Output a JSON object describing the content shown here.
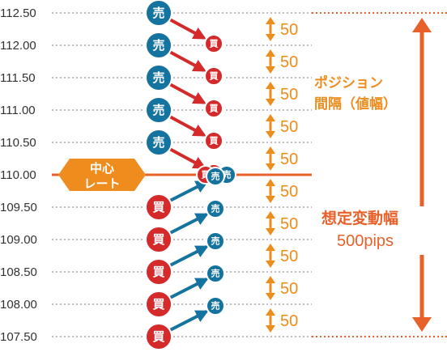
{
  "price_levels": [
    "112.50",
    "112.00",
    "111.50",
    "111.00",
    "110.50",
    "110.00",
    "109.50",
    "109.00",
    "108.50",
    "108.00",
    "107.50"
  ],
  "sell_label": "売",
  "buy_label": "買",
  "spacing_label": "50",
  "center_rate": {
    "line1": "中心",
    "line2": "レート"
  },
  "position_spacing": {
    "line1": "ポジション",
    "line2": "間隔（値幅）"
  },
  "range": {
    "line1": "想定変動幅",
    "line2": "500pips"
  },
  "colors": {
    "sell": "#15739f",
    "buy": "#d42a2a",
    "orange": "#ee8c1e",
    "red_orange": "#e8602a",
    "grid": "#aaaaaa"
  }
}
